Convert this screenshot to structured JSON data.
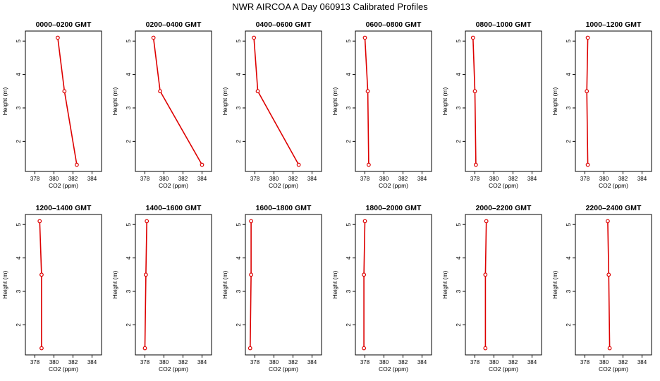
{
  "figure": {
    "title": "NWR AIRCOA A  Day 060913  Calibrated Profiles"
  },
  "style": {
    "line_color": "#dd0000",
    "marker_color": "#dd0000",
    "frame_color": "#000000"
  },
  "chart_data": [
    {
      "type": "line",
      "title": "0000–0200 GMT",
      "xlabel": "CO2 (ppm)",
      "ylabel": "Height (m)",
      "xlim": [
        377,
        385
      ],
      "ylim": [
        1.1,
        5.3
      ],
      "xticks": [
        378,
        380,
        382,
        384
      ],
      "yticks": [
        2,
        3,
        4,
        5
      ],
      "grid": false,
      "legend": "none",
      "points": [
        {
          "x": 380.4,
          "y": 5.1
        },
        {
          "x": 381.1,
          "y": 3.5
        },
        {
          "x": 382.4,
          "y": 1.3
        }
      ]
    },
    {
      "type": "line",
      "title": "0200–0400 GMT",
      "xlabel": "CO2 (ppm)",
      "ylabel": "Height (m)",
      "xlim": [
        377,
        385
      ],
      "ylim": [
        1.1,
        5.3
      ],
      "xticks": [
        378,
        380,
        382,
        384
      ],
      "yticks": [
        2,
        3,
        4,
        5
      ],
      "grid": false,
      "legend": "none",
      "points": [
        {
          "x": 378.9,
          "y": 5.1
        },
        {
          "x": 379.6,
          "y": 3.5
        },
        {
          "x": 384.0,
          "y": 1.3
        }
      ]
    },
    {
      "type": "line",
      "title": "0400–0600 GMT",
      "xlabel": "CO2 (ppm)",
      "ylabel": "Height (m)",
      "xlim": [
        377,
        385
      ],
      "ylim": [
        1.1,
        5.3
      ],
      "xticks": [
        378,
        380,
        382,
        384
      ],
      "yticks": [
        2,
        3,
        4,
        5
      ],
      "grid": false,
      "legend": "none",
      "points": [
        {
          "x": 377.9,
          "y": 5.1
        },
        {
          "x": 378.3,
          "y": 3.5
        },
        {
          "x": 382.6,
          "y": 1.3
        }
      ]
    },
    {
      "type": "line",
      "title": "0600–0800 GMT",
      "xlabel": "CO2 (ppm)",
      "ylabel": "Height (m)",
      "xlim": [
        377,
        385
      ],
      "ylim": [
        1.1,
        5.3
      ],
      "xticks": [
        378,
        380,
        382,
        384
      ],
      "yticks": [
        2,
        3,
        4,
        5
      ],
      "grid": false,
      "legend": "none",
      "points": [
        {
          "x": 378.0,
          "y": 5.1
        },
        {
          "x": 378.3,
          "y": 3.5
        },
        {
          "x": 378.4,
          "y": 1.3
        }
      ]
    },
    {
      "type": "line",
      "title": "0800–1000 GMT",
      "xlabel": "CO2 (ppm)",
      "ylabel": "Height (m)",
      "xlim": [
        377,
        385
      ],
      "ylim": [
        1.1,
        5.3
      ],
      "xticks": [
        378,
        380,
        382,
        384
      ],
      "yticks": [
        2,
        3,
        4,
        5
      ],
      "grid": false,
      "legend": "none",
      "points": [
        {
          "x": 377.8,
          "y": 5.1
        },
        {
          "x": 378.0,
          "y": 3.5
        },
        {
          "x": 378.1,
          "y": 1.3
        }
      ]
    },
    {
      "type": "line",
      "title": "1000–1200 GMT",
      "xlabel": "CO2 (ppm)",
      "ylabel": "Height (m)",
      "xlim": [
        377,
        385
      ],
      "ylim": [
        1.1,
        5.3
      ],
      "xticks": [
        378,
        380,
        382,
        384
      ],
      "yticks": [
        2,
        3,
        4,
        5
      ],
      "grid": false,
      "legend": "none",
      "points": [
        {
          "x": 378.3,
          "y": 5.1
        },
        {
          "x": 378.2,
          "y": 3.5
        },
        {
          "x": 378.3,
          "y": 1.3
        }
      ]
    },
    {
      "type": "line",
      "title": "1200–1400 GMT",
      "xlabel": "CO2 (ppm)",
      "ylabel": "Height (m)",
      "xlim": [
        377,
        385
      ],
      "ylim": [
        1.1,
        5.3
      ],
      "xticks": [
        378,
        380,
        382,
        384
      ],
      "yticks": [
        2,
        3,
        4,
        5
      ],
      "grid": false,
      "legend": "none",
      "points": [
        {
          "x": 378.5,
          "y": 5.1
        },
        {
          "x": 378.7,
          "y": 3.5
        },
        {
          "x": 378.7,
          "y": 1.3
        }
      ]
    },
    {
      "type": "line",
      "title": "1400–1600 GMT",
      "xlabel": "CO2 (ppm)",
      "ylabel": "Height (m)",
      "xlim": [
        377,
        385
      ],
      "ylim": [
        1.1,
        5.3
      ],
      "xticks": [
        378,
        380,
        382,
        384
      ],
      "yticks": [
        2,
        3,
        4,
        5
      ],
      "grid": false,
      "legend": "none",
      "points": [
        {
          "x": 378.2,
          "y": 5.1
        },
        {
          "x": 378.1,
          "y": 3.5
        },
        {
          "x": 378.0,
          "y": 1.3
        }
      ]
    },
    {
      "type": "line",
      "title": "1600–1800 GMT",
      "xlabel": "CO2 (ppm)",
      "ylabel": "Height (m)",
      "xlim": [
        377,
        385
      ],
      "ylim": [
        1.1,
        5.3
      ],
      "xticks": [
        378,
        380,
        382,
        384
      ],
      "yticks": [
        2,
        3,
        4,
        5
      ],
      "grid": false,
      "legend": "none",
      "points": [
        {
          "x": 377.6,
          "y": 5.1
        },
        {
          "x": 377.6,
          "y": 3.5
        },
        {
          "x": 377.5,
          "y": 1.3
        }
      ]
    },
    {
      "type": "line",
      "title": "1800–2000 GMT",
      "xlabel": "CO2 (ppm)",
      "ylabel": "Height (m)",
      "xlim": [
        377,
        385
      ],
      "ylim": [
        1.1,
        5.3
      ],
      "xticks": [
        378,
        380,
        382,
        384
      ],
      "yticks": [
        2,
        3,
        4,
        5
      ],
      "grid": false,
      "legend": "none",
      "points": [
        {
          "x": 378.0,
          "y": 5.1
        },
        {
          "x": 377.9,
          "y": 3.5
        },
        {
          "x": 377.9,
          "y": 1.3
        }
      ]
    },
    {
      "type": "line",
      "title": "2000–2200 GMT",
      "xlabel": "CO2 (ppm)",
      "ylabel": "Height (m)",
      "xlim": [
        377,
        385
      ],
      "ylim": [
        1.1,
        5.3
      ],
      "xticks": [
        378,
        380,
        382,
        384
      ],
      "yticks": [
        2,
        3,
        4,
        5
      ],
      "grid": false,
      "legend": "none",
      "points": [
        {
          "x": 379.2,
          "y": 5.1
        },
        {
          "x": 379.1,
          "y": 3.5
        },
        {
          "x": 379.1,
          "y": 1.3
        }
      ]
    },
    {
      "type": "line",
      "title": "2200–2400 GMT",
      "xlabel": "CO2 (ppm)",
      "ylabel": "Height (m)",
      "xlim": [
        377,
        385
      ],
      "ylim": [
        1.1,
        5.3
      ],
      "xticks": [
        378,
        380,
        382,
        384
      ],
      "yticks": [
        2,
        3,
        4,
        5
      ],
      "grid": false,
      "legend": "none",
      "points": [
        {
          "x": 380.4,
          "y": 5.1
        },
        {
          "x": 380.5,
          "y": 3.5
        },
        {
          "x": 380.6,
          "y": 1.3
        }
      ]
    }
  ]
}
